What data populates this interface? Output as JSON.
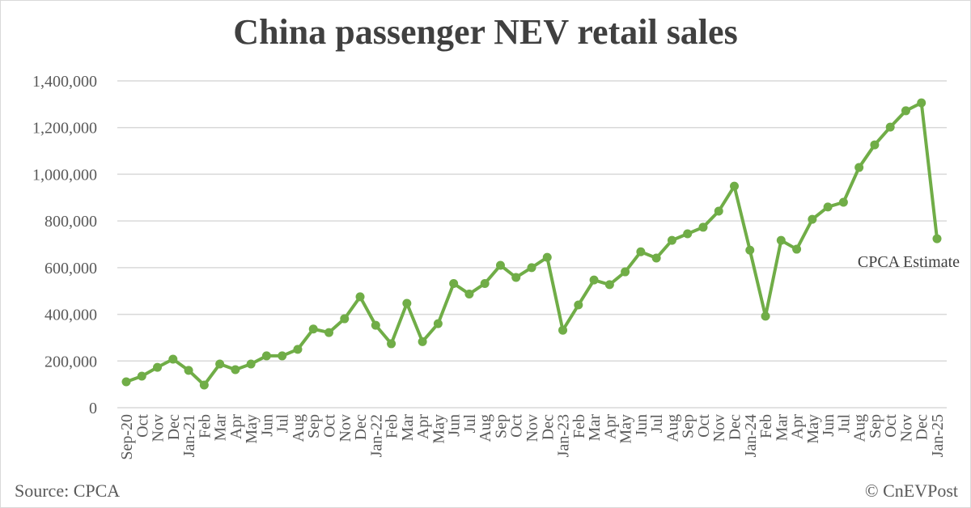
{
  "chart_data": {
    "type": "line",
    "title": "China passenger NEV retail sales",
    "xlabel": "",
    "ylabel": "",
    "ylim": [
      0,
      1400000
    ],
    "yticks": [
      "0",
      "200,000",
      "400,000",
      "600,000",
      "800,000",
      "1,000,000",
      "1,200,000",
      "1,400,000"
    ],
    "grid": true,
    "line_color": "#70ad47",
    "categories": [
      "Sep-20",
      "Oct",
      "Nov",
      "Dec",
      "Jan-21",
      "Feb",
      "Mar",
      "Apr",
      "May",
      "Jun",
      "Jul",
      "Aug",
      "Sep",
      "Oct",
      "Nov",
      "Dec",
      "Jan-22",
      "Feb",
      "Mar",
      "Apr",
      "May",
      "Jun",
      "Jul",
      "Aug",
      "Sep",
      "Oct",
      "Nov",
      "Dec",
      "Jan-23",
      "Feb",
      "Mar",
      "Apr",
      "May",
      "Jun",
      "Jul",
      "Aug",
      "Sep",
      "Oct",
      "Nov",
      "Dec",
      "Jan-24",
      "Feb",
      "Mar",
      "Apr",
      "May",
      "Jun",
      "Jul",
      "Aug",
      "Sep",
      "Oct",
      "Nov",
      "Dec",
      "Jan-25"
    ],
    "values": [
      111000,
      135000,
      173000,
      208000,
      160000,
      97000,
      187000,
      163000,
      187000,
      222000,
      222000,
      250000,
      337000,
      322000,
      381000,
      475000,
      353000,
      274000,
      447000,
      283000,
      360000,
      532000,
      487000,
      532000,
      610000,
      558000,
      600000,
      644000,
      332000,
      440000,
      547000,
      527000,
      582000,
      668000,
      641000,
      717000,
      745000,
      773000,
      842000,
      949000,
      675000,
      392000,
      717000,
      679000,
      807000,
      860000,
      880000,
      1029000,
      1126000,
      1202000,
      1272000,
      1306000,
      724000
    ],
    "annotation": "CPCA Estimate"
  },
  "footer": {
    "source": "Source: CPCA",
    "copyright": "© CnEVPost"
  }
}
